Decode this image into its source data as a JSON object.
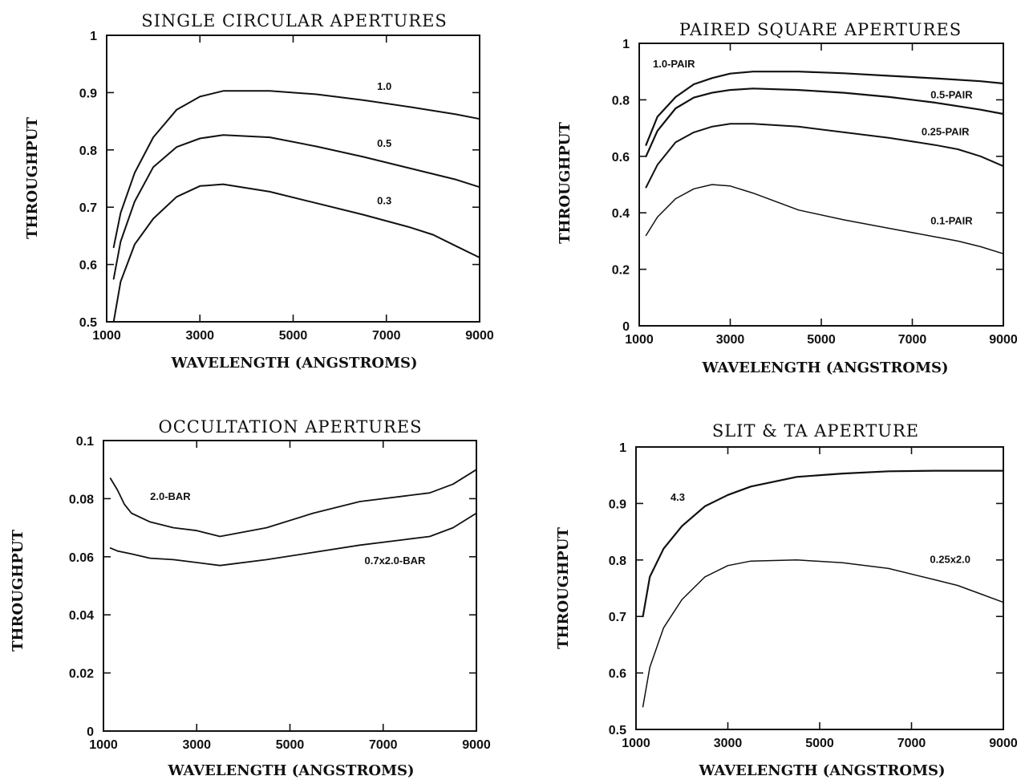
{
  "figure": {
    "panels": [
      {
        "title": "SINGLE CIRCULAR APERTURES",
        "xlabel": "WAVELENGTH (ANGSTROMS)",
        "ylabel": "THROUGHPUT"
      },
      {
        "title": "PAIRED SQUARE APERTURES",
        "xlabel": "WAVELENGTH (ANGSTROMS)",
        "ylabel": "THROUGHPUT"
      },
      {
        "title": "OCCULTATION APERTURES",
        "xlabel": "WAVELENGTH (ANGSTROMS)",
        "ylabel": "THROUGHPUT"
      },
      {
        "title": "SLIT & TA APERTURE",
        "xlabel": "WAVELENGTH (ANGSTROMS)",
        "ylabel": "THROUGHPUT"
      }
    ]
  },
  "chart_data": [
    {
      "type": "line",
      "title": "SINGLE CIRCULAR APERTURES",
      "xlabel": "WAVELENGTH (ANGSTROMS)",
      "ylabel": "THROUGHPUT",
      "xlim": [
        1000,
        9000
      ],
      "ylim": [
        0.5,
        1.0
      ],
      "xticks": [
        1000,
        3000,
        5000,
        7000,
        9000
      ],
      "xtick_labels": [
        "1000",
        "3000",
        "5000",
        "7000",
        "9000"
      ],
      "yticks": [
        0.5,
        0.6,
        0.7,
        0.8,
        0.9,
        1.0
      ],
      "ytick_labels": [
        "0.5",
        "0.6",
        "0.7",
        "0.8",
        "0.9",
        "1"
      ],
      "grid": false,
      "series": [
        {
          "name": "1.0",
          "x": [
            1150,
            1300,
            1600,
            2000,
            2500,
            3000,
            3500,
            4500,
            5500,
            6500,
            7500,
            8500,
            9000
          ],
          "y": [
            0.63,
            0.69,
            0.76,
            0.822,
            0.87,
            0.893,
            0.903,
            0.903,
            0.897,
            0.887,
            0.875,
            0.862,
            0.854
          ]
        },
        {
          "name": "0.5",
          "x": [
            1150,
            1300,
            1600,
            2000,
            2500,
            3000,
            3500,
            4500,
            5500,
            6500,
            7500,
            8500,
            9000
          ],
          "y": [
            0.575,
            0.64,
            0.71,
            0.77,
            0.805,
            0.82,
            0.826,
            0.822,
            0.806,
            0.788,
            0.768,
            0.748,
            0.735
          ]
        },
        {
          "name": "0.3",
          "x": [
            1150,
            1300,
            1600,
            2000,
            2500,
            3000,
            3500,
            4500,
            5500,
            6500,
            7500,
            8000,
            8500,
            9000
          ],
          "y": [
            0.5,
            0.57,
            0.635,
            0.68,
            0.718,
            0.737,
            0.74,
            0.727,
            0.707,
            0.687,
            0.665,
            0.652,
            0.632,
            0.612
          ]
        }
      ]
    },
    {
      "type": "line",
      "title": "PAIRED SQUARE APERTURES",
      "xlabel": "WAVELENGTH (ANGSTROMS)",
      "ylabel": "THROUGHPUT",
      "xlim": [
        1000,
        9000
      ],
      "ylim": [
        0,
        1.0
      ],
      "xticks": [
        1000,
        3000,
        5000,
        7000,
        9000
      ],
      "xtick_labels": [
        "1000",
        "3000",
        "5000",
        "7000",
        "9000"
      ],
      "yticks": [
        0,
        0.2,
        0.4,
        0.6,
        0.8,
        1.0
      ],
      "ytick_labels": [
        "0",
        "0.2",
        "0.4",
        "0.6",
        "0.8",
        "1"
      ],
      "grid": false,
      "series": [
        {
          "name": "1.0-PAIR",
          "x": [
            1150,
            1400,
            1800,
            2200,
            2600,
            3000,
            3500,
            4500,
            5500,
            6500,
            7500,
            8500,
            9000
          ],
          "y": [
            0.64,
            0.74,
            0.81,
            0.855,
            0.877,
            0.893,
            0.9,
            0.9,
            0.894,
            0.885,
            0.876,
            0.866,
            0.858
          ]
        },
        {
          "name": "0.5-PAIR",
          "x": [
            1150,
            1400,
            1800,
            2200,
            2600,
            3000,
            3500,
            4500,
            5500,
            6500,
            7500,
            8500,
            9000
          ],
          "y": [
            0.6,
            0.69,
            0.77,
            0.808,
            0.825,
            0.835,
            0.84,
            0.835,
            0.825,
            0.81,
            0.79,
            0.765,
            0.75
          ]
        },
        {
          "name": "0.25-PAIR",
          "x": [
            1150,
            1400,
            1800,
            2200,
            2600,
            3000,
            3500,
            4500,
            5500,
            6500,
            7500,
            8000,
            8500,
            9000
          ],
          "y": [
            0.49,
            0.57,
            0.65,
            0.685,
            0.705,
            0.715,
            0.715,
            0.705,
            0.685,
            0.665,
            0.64,
            0.625,
            0.6,
            0.565
          ]
        },
        {
          "name": "0.1-PAIR",
          "x": [
            1150,
            1400,
            1800,
            2200,
            2600,
            3000,
            3500,
            4500,
            5500,
            6500,
            7500,
            8000,
            8500,
            9000
          ],
          "y": [
            0.32,
            0.385,
            0.45,
            0.485,
            0.5,
            0.495,
            0.47,
            0.41,
            0.375,
            0.345,
            0.315,
            0.3,
            0.28,
            0.255
          ]
        }
      ]
    },
    {
      "type": "line",
      "title": "OCCULTATION APERTURES",
      "xlabel": "WAVELENGTH (ANGSTROMS)",
      "ylabel": "THROUGHPUT",
      "xlim": [
        1000,
        9000
      ],
      "ylim": [
        0,
        0.1
      ],
      "xticks": [
        1000,
        3000,
        5000,
        7000,
        9000
      ],
      "xtick_labels": [
        "1000",
        "3000",
        "5000",
        "7000",
        "9000"
      ],
      "yticks": [
        0,
        0.02,
        0.04,
        0.06,
        0.08,
        0.1
      ],
      "ytick_labels": [
        "0",
        "0.02",
        "0.04",
        "0.06",
        "0.08",
        "0.1"
      ],
      "grid": false,
      "series": [
        {
          "name": "2.0-BAR",
          "x": [
            1150,
            1300,
            1450,
            1600,
            2000,
            2500,
            3000,
            3500,
            4500,
            5500,
            6500,
            7500,
            8000,
            8500,
            9000
          ],
          "y": [
            0.087,
            0.083,
            0.078,
            0.075,
            0.072,
            0.07,
            0.069,
            0.067,
            0.07,
            0.075,
            0.079,
            0.081,
            0.082,
            0.085,
            0.09
          ]
        },
        {
          "name": "0.7x2.0-BAR",
          "x": [
            1150,
            1300,
            1600,
            2000,
            2500,
            3000,
            3500,
            4500,
            5500,
            6500,
            7500,
            8000,
            8500,
            9000
          ],
          "y": [
            0.063,
            0.062,
            0.061,
            0.0595,
            0.059,
            0.058,
            0.057,
            0.059,
            0.0615,
            0.064,
            0.066,
            0.067,
            0.07,
            0.075
          ]
        }
      ]
    },
    {
      "type": "line",
      "title": "SLIT & TA APERTURE",
      "xlabel": "WAVELENGTH (ANGSTROMS)",
      "ylabel": "THROUGHPUT",
      "xlim": [
        1000,
        9000
      ],
      "ylim": [
        0.5,
        1.0
      ],
      "xticks": [
        1000,
        3000,
        5000,
        7000,
        9000
      ],
      "xtick_labels": [
        "1000",
        "3000",
        "5000",
        "7000",
        "9000"
      ],
      "yticks": [
        0.5,
        0.6,
        0.7,
        0.8,
        0.9,
        1.0
      ],
      "ytick_labels": [
        "0.5",
        "0.6",
        "0.7",
        "0.8",
        "0.9",
        "1"
      ],
      "grid": false,
      "series": [
        {
          "name": "4.3",
          "x": [
            1150,
            1300,
            1600,
            2000,
            2500,
            3000,
            3500,
            4500,
            5500,
            6500,
            7500,
            8500,
            9000
          ],
          "y": [
            0.7,
            0.77,
            0.82,
            0.86,
            0.895,
            0.915,
            0.93,
            0.947,
            0.953,
            0.957,
            0.958,
            0.958,
            0.958
          ]
        },
        {
          "name": "0.25x2.0",
          "x": [
            1150,
            1300,
            1600,
            2000,
            2500,
            3000,
            3500,
            4500,
            5500,
            6500,
            7500,
            8000,
            8500,
            9000
          ],
          "y": [
            0.54,
            0.61,
            0.68,
            0.73,
            0.77,
            0.79,
            0.798,
            0.8,
            0.795,
            0.785,
            0.765,
            0.755,
            0.74,
            0.725
          ]
        }
      ]
    }
  ]
}
